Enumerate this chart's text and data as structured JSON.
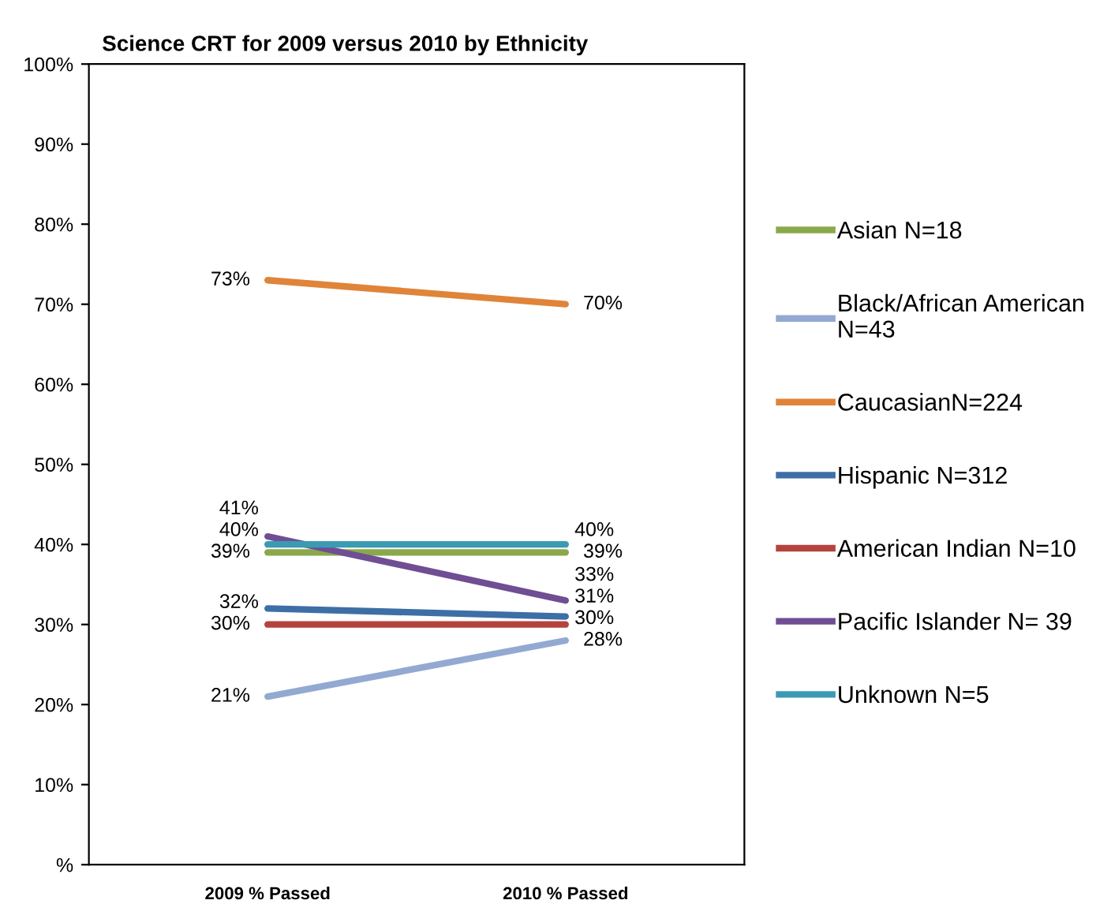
{
  "chart_data": {
    "type": "line",
    "title": "Science CRT for 2009 versus 2010 by Ethnicity",
    "categories": [
      "2009 % Passed",
      "2010 % Passed"
    ],
    "series": [
      {
        "name": "Asian N=18",
        "color": "#8aa84b",
        "values": [
          39,
          39
        ],
        "value_labels": [
          "39%",
          "39%"
        ]
      },
      {
        "name": "Black/African American\nN=43",
        "color": "#93a9d1",
        "values": [
          21,
          28
        ],
        "value_labels": [
          "21%",
          "28%"
        ]
      },
      {
        "name": "CaucasianN=224",
        "color": "#e0843a",
        "values": [
          73,
          70
        ],
        "value_labels": [
          "73%",
          "70%"
        ]
      },
      {
        "name": "Hispanic N=312",
        "color": "#3e6ea6",
        "values": [
          32,
          31
        ],
        "value_labels": [
          "32%",
          "31%"
        ]
      },
      {
        "name": "American Indian N=10",
        "color": "#b5433d",
        "values": [
          30,
          30
        ],
        "value_labels": [
          "30%",
          "30%"
        ]
      },
      {
        "name": "Pacific Islander N= 39",
        "color": "#6f4e94",
        "values": [
          41,
          33
        ],
        "value_labels": [
          "41%",
          "33%"
        ]
      },
      {
        "name": "Unknown N=5",
        "color": "#3a9bb3",
        "values": [
          40,
          40
        ],
        "value_labels": [
          "40%",
          "40%"
        ]
      }
    ],
    "ylim": [
      0,
      100
    ],
    "yticks": [
      {
        "value": 0,
        "label": "%"
      },
      {
        "value": 10,
        "label": "10%"
      },
      {
        "value": 20,
        "label": "20%"
      },
      {
        "value": 30,
        "label": "30%"
      },
      {
        "value": 40,
        "label": "40%"
      },
      {
        "value": 50,
        "label": "50%"
      },
      {
        "value": 60,
        "label": "60%"
      },
      {
        "value": 70,
        "label": "70%"
      },
      {
        "value": 80,
        "label": "80%"
      },
      {
        "value": 90,
        "label": "90%"
      },
      {
        "value": 100,
        "label": "100%"
      }
    ],
    "grid": false,
    "legend": "right",
    "marker": "none",
    "line_style": "solid"
  }
}
